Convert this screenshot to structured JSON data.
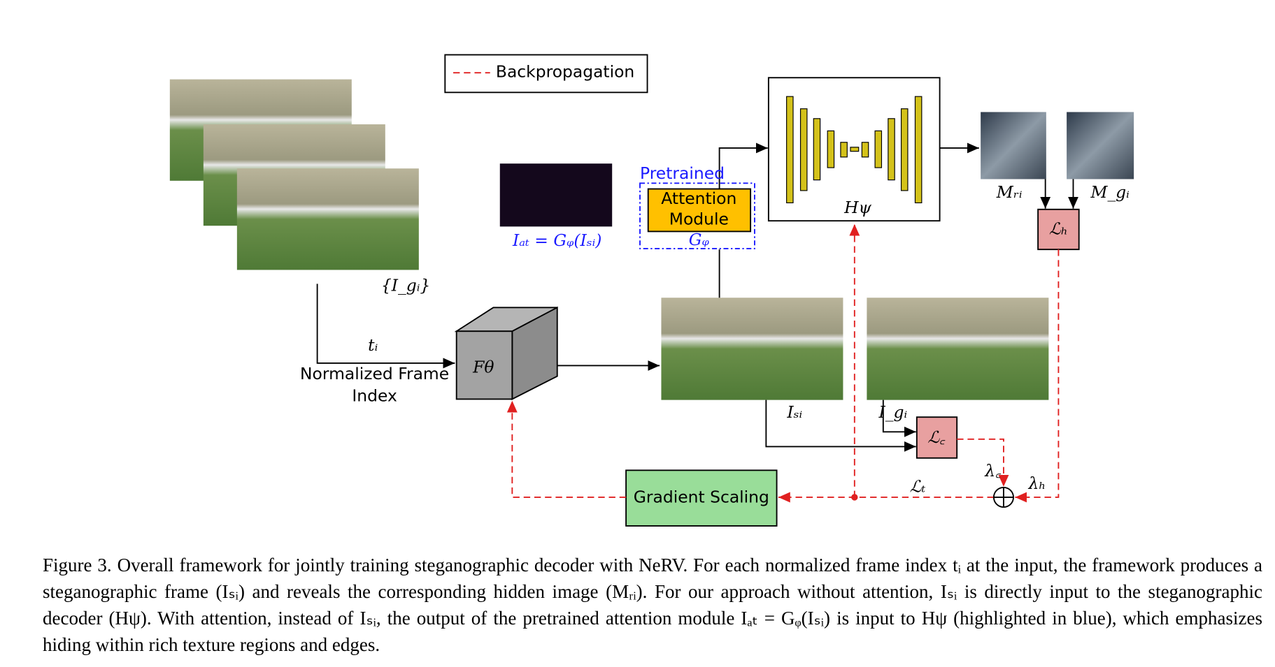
{
  "legend": {
    "label": "Backpropagation"
  },
  "nodes": {
    "input_frames": "{I_gᵢ}",
    "frame_index_symbol": "tᵢ",
    "frame_index_label": [
      "Normalized Frame",
      "Index"
    ],
    "nerv": "Fθ",
    "attention_output": "Iₐₜ = Gᵩ(Iₛᵢ)",
    "pretrained": "Pretrained",
    "attention_module": [
      "Attention",
      "Module"
    ],
    "attention_symbol": "Gᵩ",
    "decoder": "Hψ",
    "revealed": "Mᵣᵢ",
    "hidden": "M_gᵢ",
    "loss_h": "ℒₕ",
    "stego_frame": "Iₛᵢ",
    "gt_frame": "I_gᵢ",
    "loss_c": "ℒ꜀",
    "lambda_c": "λ꜀",
    "lambda_h": "λₕ",
    "loss_t": "ℒₜ",
    "gradient_scaling": "Gradient Scaling"
  },
  "caption": "Figure 3. Overall framework for jointly training steganographic decoder with NeRV. For each normalized frame index tᵢ at the input, the framework produces a steganographic frame (Iₛᵢ) and reveals the corresponding hidden image (Mᵣᵢ). For our approach without attention, Iₛᵢ is directly input to the steganographic decoder (Hψ). With attention, instead of Iₛᵢ, the output of the pretrained attention module Iₐₜ = Gᵩ(Iₛᵢ) is input to Hψ (highlighted in blue), which emphasizes hiding within rich texture regions and edges."
}
